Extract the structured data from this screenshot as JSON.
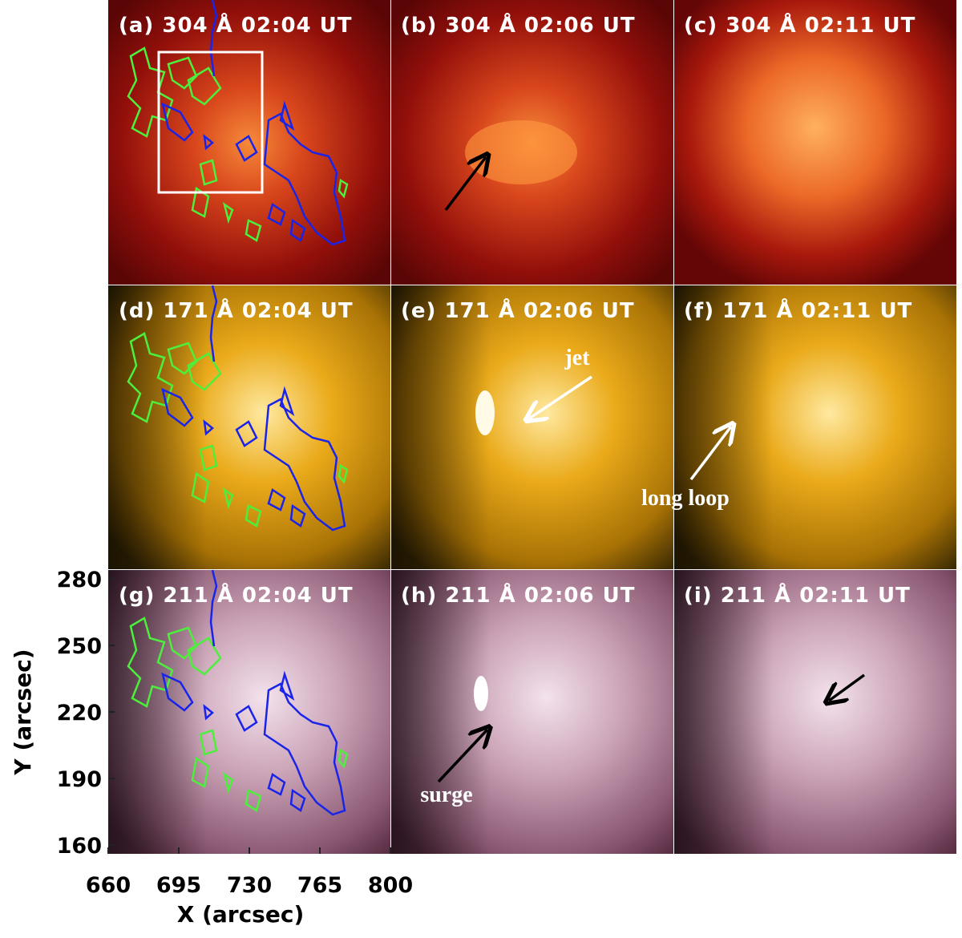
{
  "panels": [
    {
      "label": "(a) 304 Å 02:04 UT"
    },
    {
      "label": "(b) 304 Å 02:06 UT"
    },
    {
      "label": "(c) 304 Å 02:11 UT"
    },
    {
      "label": "(d) 171 Å 02:04 UT"
    },
    {
      "label": "(e) 171 Å 02:06 UT",
      "annotation": "jet"
    },
    {
      "label": "(f) 171 Å 02:11 UT",
      "annotation": "long loop"
    },
    {
      "label": "(g) 211 Å 02:04 UT"
    },
    {
      "label": "(h) 211 Å 02:06 UT",
      "annotation": "surge"
    },
    {
      "label": "(i) 211 Å 02:11 UT"
    }
  ],
  "axes": {
    "xlabel": "X (arcsec)",
    "ylabel": "Y (arcsec)",
    "xlim": [
      660,
      800
    ],
    "ylim": [
      156,
      284
    ],
    "xticks": [
      660,
      695,
      730,
      765,
      800
    ],
    "yticks": [
      160,
      190,
      220,
      250,
      280
    ]
  }
}
